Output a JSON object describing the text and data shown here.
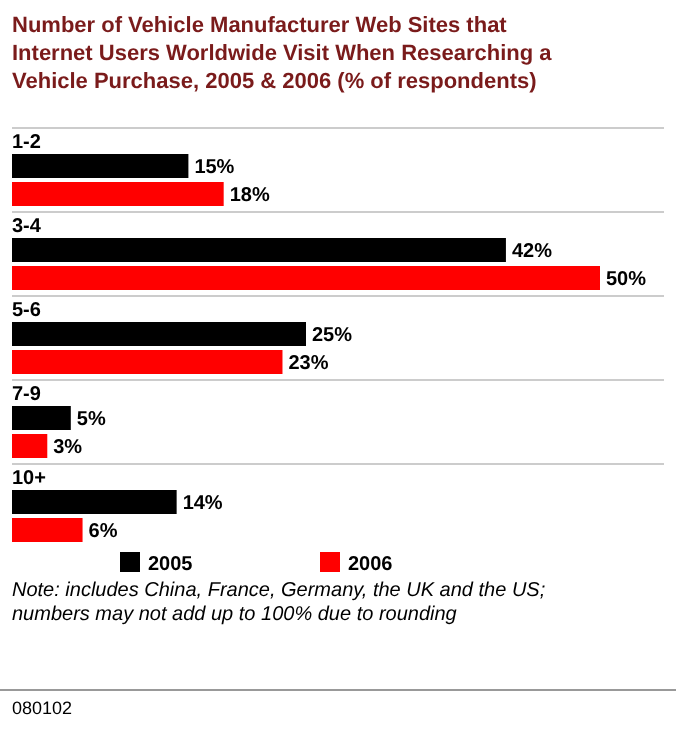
{
  "chart_data": {
    "type": "bar",
    "orientation": "horizontal",
    "title": "Number of Vehicle Manufacturer Web Sites that Internet Users Worldwide Visit When Researching a Vehicle Purchase, 2005 & 2006 (% of respondents)",
    "categories": [
      "1-2",
      "3-4",
      "5-6",
      "7-9",
      "10+"
    ],
    "series": [
      {
        "name": "2005",
        "color": "#000000",
        "values": [
          15,
          42,
          25,
          5,
          14
        ],
        "value_labels": [
          "15%",
          "42%",
          "25%",
          "5%",
          "14%"
        ]
      },
      {
        "name": "2006",
        "color": "#ff0000",
        "values": [
          18,
          50,
          23,
          3,
          6
        ],
        "value_labels": [
          "18%",
          "50%",
          "23%",
          "3%",
          "6%"
        ]
      }
    ],
    "legend": "bottom",
    "annotations": [
      "Note: includes China, France, Germany, the UK and the US; numbers may not add up to 100% due to rounding",
      "080102"
    ]
  }
}
